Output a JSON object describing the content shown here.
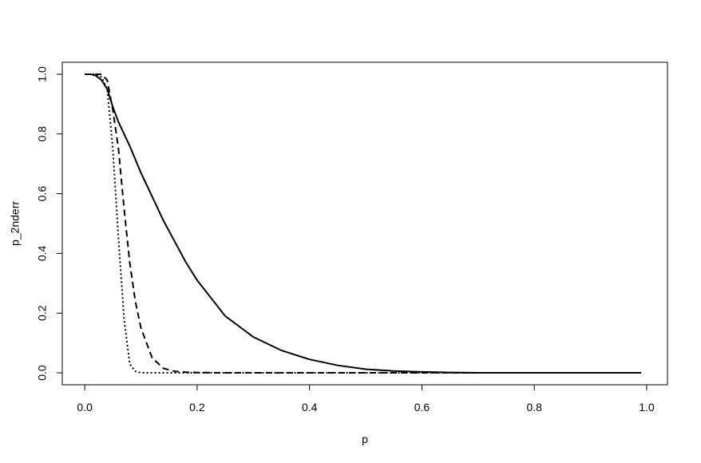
{
  "chart_data": {
    "type": "line",
    "xlabel": "p",
    "ylabel": "p_2nderr",
    "x": [
      0,
      0.01,
      0.02,
      0.03,
      0.04,
      0.05,
      0.06,
      0.07,
      0.08,
      0.09,
      0.1,
      0.12,
      0.14,
      0.16,
      0.18,
      0.2,
      0.25,
      0.3,
      0.35,
      0.4,
      0.45,
      0.5,
      0.55,
      0.6,
      0.65,
      0.7,
      0.8,
      0.9,
      0.99
    ],
    "series": [
      {
        "color": "#000000",
        "linestyle": "solid",
        "values": [
          1,
          1,
          0.995,
          0.98,
          0.95,
          0.89,
          0.84,
          0.8,
          0.76,
          0.715,
          0.67,
          0.59,
          0.51,
          0.44,
          0.37,
          0.31,
          0.19,
          0.12,
          0.075,
          0.045,
          0.025,
          0.012,
          0.006,
          0.003,
          0.001,
          0,
          0,
          0,
          0
        ]
      },
      {
        "color": "#000000",
        "linestyle": "dashed",
        "values": [
          1,
          1,
          1,
          1,
          0.98,
          0.88,
          0.75,
          0.55,
          0.37,
          0.24,
          0.15,
          0.05,
          0.015,
          0.005,
          0.002,
          0.001,
          0,
          0,
          0,
          0,
          0,
          0,
          0,
          0,
          0,
          0,
          0,
          0,
          0
        ]
      },
      {
        "color": "#000000",
        "linestyle": "dotted",
        "values": [
          1,
          1,
          1,
          0.99,
          0.95,
          0.75,
          0.45,
          0.18,
          0.03,
          0.005,
          0,
          0,
          0,
          0,
          0,
          0,
          0,
          0,
          0,
          0,
          0,
          0,
          0,
          0,
          0,
          0,
          0,
          0,
          0
        ]
      }
    ],
    "xlim": [
      -0.04,
      1.037
    ],
    "ylim": [
      -0.04,
      1.04
    ],
    "xticks": [
      {
        "value": 0,
        "label": "0.0"
      },
      0.2,
      0.4,
      0.6,
      0.8,
      {
        "value": 1,
        "label": "1.0"
      }
    ],
    "yticks": [
      {
        "value": 0,
        "label": "0.0"
      },
      0.2,
      0.4,
      0.6,
      0.8,
      {
        "value": 1,
        "label": "1.0"
      }
    ]
  }
}
